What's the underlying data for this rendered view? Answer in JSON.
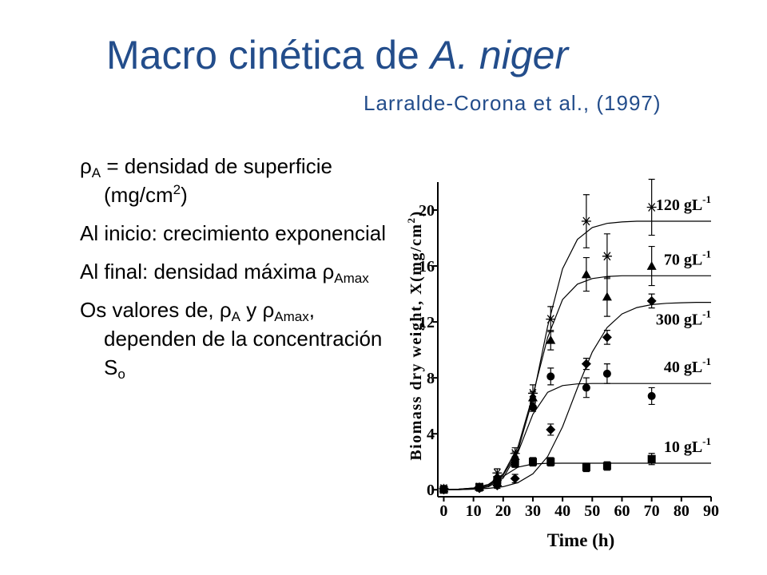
{
  "header": {
    "title": "Macro cinética de ",
    "title_italic": "A. niger",
    "subtitle": "Larralde-Corona et al., (1997)"
  },
  "bullets": [
    [
      {
        "text": "ρ"
      },
      {
        "text": "A",
        "style": "sub"
      },
      {
        "text": " =  densidad de superficie (mg/cm"
      },
      {
        "text": "2",
        "style": "sup"
      },
      {
        "text": ")"
      }
    ],
    [
      {
        "text": "Al inicio: crecimiento exponencial"
      }
    ],
    [
      {
        "text": "Al final:  densidad máxima ρ"
      },
      {
        "text": "Amax",
        "style": "sub"
      }
    ],
    [
      {
        "text": "Os valores de, ρ"
      },
      {
        "text": "A",
        "style": "sub"
      },
      {
        "text": " y ρ"
      },
      {
        "text": "Amax",
        "style": "sub"
      },
      {
        "text": ", dependen de la concentración S"
      },
      {
        "text": "o",
        "style": "sub"
      }
    ]
  ],
  "chart_data": {
    "type": "scatter",
    "x_label": "Time (h)",
    "y_label": [
      "Biomass dry weight, X(mg/cm",
      "2",
      ")"
    ],
    "xlim": [
      -2,
      90
    ],
    "xticks": [
      0,
      10,
      20,
      30,
      40,
      50,
      60,
      70,
      80,
      90
    ],
    "ylim": [
      -0.5,
      22
    ],
    "yticks": [
      0,
      4,
      8,
      12,
      16,
      20
    ],
    "fit_x": [
      0,
      5,
      10,
      15,
      20,
      25,
      30,
      35,
      40,
      45,
      50,
      55,
      60,
      65,
      70,
      75,
      80,
      85,
      90
    ],
    "series": [
      {
        "name": "120 gL",
        "unit_sup": "-1",
        "marker": "asterisk",
        "color": "#000000",
        "x": [
          0,
          12,
          18,
          24,
          30,
          36,
          48,
          55,
          70
        ],
        "values": [
          0.1,
          0.2,
          1.2,
          2.6,
          6.9,
          12.2,
          19.2,
          16.7,
          20.2
        ],
        "errors": [
          0.2,
          0.2,
          0.3,
          0.4,
          0.6,
          0.9,
          1.9,
          1.6,
          2.0
        ],
        "fit": [
          0.01,
          0.04,
          0.12,
          0.36,
          1.04,
          2.82,
          6.55,
          11.7,
          15.8,
          17.9,
          18.75,
          19.05,
          19.15,
          19.2,
          19.2,
          19.2,
          19.2,
          19.2,
          19.2
        ]
      },
      {
        "name": "70 gL",
        "unit_sup": "-1",
        "marker": "triangle",
        "color": "#000000",
        "x": [
          0,
          12,
          18,
          24,
          30,
          36,
          48,
          55,
          70
        ],
        "values": [
          0.1,
          0.2,
          0.9,
          2.4,
          6.6,
          10.7,
          15.4,
          13.8,
          16.0
        ],
        "errors": [
          0.2,
          0.2,
          0.3,
          0.3,
          0.4,
          0.7,
          1.2,
          1.4,
          1.4
        ],
        "fit": [
          0.01,
          0.04,
          0.12,
          0.38,
          1.13,
          3.08,
          6.77,
          10.9,
          13.6,
          14.7,
          15.1,
          15.25,
          15.3,
          15.3,
          15.3,
          15.3,
          15.3,
          15.3,
          15.3
        ]
      },
      {
        "name": "300 gL",
        "unit_sup": "-1",
        "marker": "diamond",
        "color": "#000000",
        "x": [
          0,
          12,
          18,
          24,
          36,
          48,
          55,
          70
        ],
        "values": [
          0.0,
          0.1,
          0.3,
          0.8,
          4.3,
          9.0,
          10.9,
          13.5
        ],
        "errors": [
          0.2,
          0.2,
          0.2,
          0.3,
          0.4,
          0.4,
          0.5,
          0.5
        ],
        "fit": [
          0.01,
          0.02,
          0.04,
          0.1,
          0.22,
          0.51,
          1.14,
          2.38,
          4.5,
          7.27,
          9.85,
          11.6,
          12.57,
          13.03,
          13.24,
          13.33,
          13.37,
          13.4,
          13.4
        ]
      },
      {
        "name": "40 gL",
        "unit_sup": "-1",
        "marker": "circle",
        "color": "#000000",
        "x": [
          0,
          12,
          18,
          24,
          30,
          36,
          48,
          55,
          70
        ],
        "values": [
          0.0,
          0.2,
          0.5,
          2.0,
          5.9,
          8.1,
          7.3,
          8.3,
          6.7
        ],
        "errors": [
          0.2,
          0.2,
          0.3,
          0.3,
          0.3,
          0.6,
          0.7,
          0.7,
          0.6
        ],
        "fit": [
          0.0,
          0.01,
          0.05,
          0.2,
          0.83,
          2.69,
          5.4,
          6.97,
          7.45,
          7.57,
          7.6,
          7.6,
          7.6,
          7.6,
          7.6,
          7.6,
          7.6,
          7.6,
          7.6
        ]
      },
      {
        "name": "10 gL",
        "unit_sup": "-1",
        "marker": "square",
        "color": "#000000",
        "x": [
          0,
          12,
          18,
          24,
          30,
          36,
          48,
          55,
          70
        ],
        "values": [
          0.0,
          0.2,
          0.7,
          1.9,
          2.0,
          2.0,
          1.6,
          1.7,
          2.2
        ],
        "errors": [
          0.2,
          0.2,
          0.2,
          0.3,
          0.3,
          0.3,
          0.3,
          0.3,
          0.4
        ],
        "fit": [
          0.0,
          0.01,
          0.06,
          0.28,
          0.95,
          1.62,
          1.84,
          1.89,
          1.9,
          1.9,
          1.9,
          1.9,
          1.9,
          1.9,
          1.9,
          1.9,
          1.9,
          1.9,
          1.9
        ]
      }
    ]
  }
}
